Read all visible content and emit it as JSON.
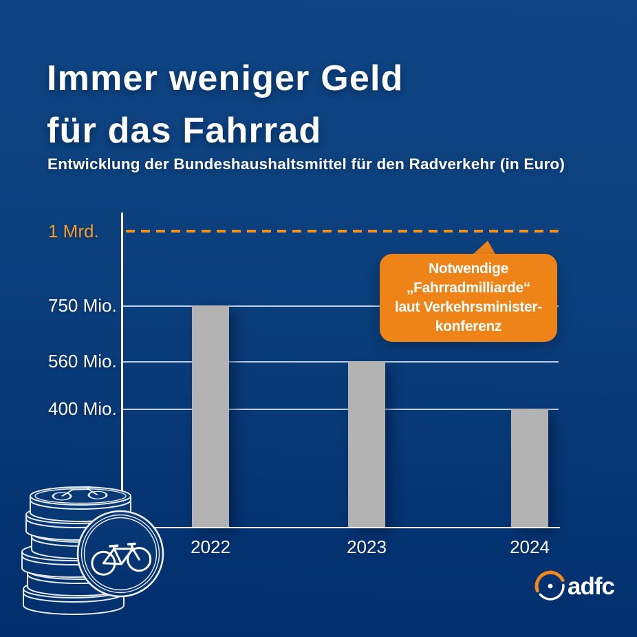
{
  "header": {
    "title_line1": "Immer weniger Geld",
    "title_line2": "für das Fahrrad",
    "subtitle": "Entwicklung der Bundeshaushaltsmittel für den Radverkehr (in Euro)"
  },
  "chart_data": {
    "type": "bar",
    "title": "Immer weniger Geld für das Fahrrad",
    "subtitle": "Entwicklung der Bundeshaushaltsmittel für den Radverkehr (in Euro)",
    "categories": [
      "2022",
      "2023",
      "2024"
    ],
    "values": [
      750,
      560,
      400
    ],
    "unit": "Mio. Euro",
    "ylim": [
      0,
      1070
    ],
    "grid": true,
    "legend": "none",
    "bar_color": "#b3b3b3",
    "yticks": [
      {
        "label": "1 Mrd.",
        "value": 1000,
        "style": "dashed",
        "color": "#f49b2a"
      },
      {
        "label": "750 Mio.",
        "value": 750,
        "style": "solid",
        "color": "#ffffff"
      },
      {
        "label": "560 Mio.",
        "value": 560,
        "style": "solid",
        "color": "#ffffff"
      },
      {
        "label": "400 Mio.",
        "value": 400,
        "style": "solid",
        "color": "#ffffff"
      }
    ],
    "reference_line": {
      "value": 1000,
      "label": "1 Mrd.",
      "style": "dashed",
      "annotation": "Notwendige „Fahrradmilliarde“ laut Verkehrsministerkonferenz"
    }
  },
  "callout": {
    "lines": [
      "Notwendige",
      "„Fahrradmilliarde“",
      "laut Verkehrsminister-",
      "konferenz"
    ],
    "bg_color": "#ee8417"
  },
  "footer": {
    "brand": "adfc"
  },
  "illustrations": {
    "coins": "coin-stack-with-bicycle-coin",
    "brand_mark": "adfc-wheel-logo"
  },
  "colors": {
    "background_top": "#0e4583",
    "background_bottom": "#012e6c",
    "accent_orange": "#ee8417",
    "dash_orange": "#f1911f",
    "tick_orange": "#f49b2a",
    "bar_gray": "#b3b3b3",
    "text_white": "#ffffff"
  }
}
